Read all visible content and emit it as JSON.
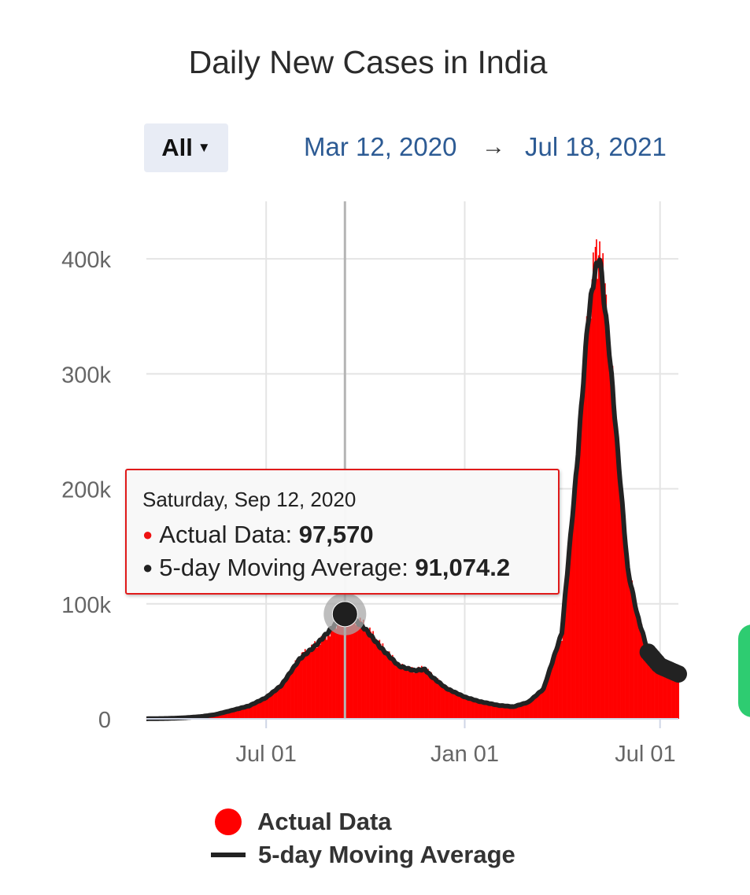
{
  "title": "Daily New Cases in India",
  "controls": {
    "range_select": "All",
    "date_start": "Mar 12, 2020",
    "date_arrow": "→",
    "date_end": "Jul 18, 2021"
  },
  "tooltip": {
    "date": "Saturday, Sep 12, 2020",
    "rows": [
      {
        "label": "Actual Data: ",
        "value": "97,570"
      },
      {
        "label": "5-day Moving Average: ",
        "value": "91,074.2"
      }
    ]
  },
  "legend": [
    {
      "name": "Actual Data",
      "color": "#ff0000"
    },
    {
      "name": "5-day Moving Average",
      "color": "#222222"
    }
  ],
  "chart_data": {
    "type": "bar",
    "x_range": [
      "2020-03-12",
      "2021-07-18"
    ],
    "ylim": [
      0,
      450000
    ],
    "y_ticks": [
      0,
      100000,
      200000,
      300000,
      400000
    ],
    "y_tick_labels": [
      "0",
      "100k",
      "200k",
      "300k",
      "400k"
    ],
    "x_ticks": [
      "2020-07-01",
      "2021-01-01",
      "2021-07-01"
    ],
    "x_tick_labels": [
      "Jul 01",
      "Jan 01",
      "Jul 01"
    ],
    "highlight": {
      "date": "2020-09-12",
      "actual": 97570,
      "moving_average": 91074.2
    },
    "series": [
      {
        "name": "Actual Data",
        "color": "#ff0000",
        "points": [
          [
            "2020-03-12",
            100
          ],
          [
            "2020-04-01",
            400
          ],
          [
            "2020-04-15",
            900
          ],
          [
            "2020-05-01",
            2000
          ],
          [
            "2020-05-15",
            3800
          ],
          [
            "2020-06-01",
            8000
          ],
          [
            "2020-06-15",
            11500
          ],
          [
            "2020-07-01",
            19000
          ],
          [
            "2020-07-15",
            30000
          ],
          [
            "2020-08-01",
            54000
          ],
          [
            "2020-08-15",
            64000
          ],
          [
            "2020-09-01",
            78000
          ],
          [
            "2020-09-12",
            97570
          ],
          [
            "2020-09-20",
            88000
          ],
          [
            "2020-10-01",
            80000
          ],
          [
            "2020-10-15",
            64000
          ],
          [
            "2020-11-01",
            46000
          ],
          [
            "2020-11-15",
            42000
          ],
          [
            "2020-11-25",
            44000
          ],
          [
            "2020-12-01",
            38000
          ],
          [
            "2020-12-15",
            27000
          ],
          [
            "2021-01-01",
            19500
          ],
          [
            "2021-01-15",
            15500
          ],
          [
            "2021-02-01",
            12000
          ],
          [
            "2021-02-15",
            10000
          ],
          [
            "2021-03-01",
            14000
          ],
          [
            "2021-03-15",
            25000
          ],
          [
            "2021-04-01",
            72000
          ],
          [
            "2021-04-15",
            217000
          ],
          [
            "2021-04-25",
            349000
          ],
          [
            "2021-05-01",
            392000
          ],
          [
            "2021-05-06",
            414000
          ],
          [
            "2021-05-15",
            326000
          ],
          [
            "2021-06-01",
            133000
          ],
          [
            "2021-06-10",
            92000
          ],
          [
            "2021-06-20",
            58000
          ],
          [
            "2021-07-01",
            48000
          ],
          [
            "2021-07-18",
            38000
          ]
        ]
      },
      {
        "name": "5-day Moving Average",
        "color": "#222222",
        "points": [
          [
            "2020-03-12",
            80
          ],
          [
            "2020-04-01",
            350
          ],
          [
            "2020-04-15",
            850
          ],
          [
            "2020-05-01",
            1900
          ],
          [
            "2020-05-15",
            3700
          ],
          [
            "2020-06-01",
            7800
          ],
          [
            "2020-06-15",
            11200
          ],
          [
            "2020-07-01",
            18500
          ],
          [
            "2020-07-15",
            29000
          ],
          [
            "2020-08-01",
            52000
          ],
          [
            "2020-08-15",
            63000
          ],
          [
            "2020-09-01",
            80000
          ],
          [
            "2020-09-12",
            91074
          ],
          [
            "2020-09-20",
            87000
          ],
          [
            "2020-10-01",
            78000
          ],
          [
            "2020-10-15",
            62000
          ],
          [
            "2020-11-01",
            46000
          ],
          [
            "2020-11-15",
            42000
          ],
          [
            "2020-11-25",
            43000
          ],
          [
            "2020-12-01",
            37000
          ],
          [
            "2020-12-15",
            26500
          ],
          [
            "2021-01-01",
            19000
          ],
          [
            "2021-01-15",
            15000
          ],
          [
            "2021-02-01",
            11800
          ],
          [
            "2021-02-15",
            10500
          ],
          [
            "2021-03-01",
            14500
          ],
          [
            "2021-03-15",
            26000
          ],
          [
            "2021-04-01",
            75000
          ],
          [
            "2021-04-15",
            220000
          ],
          [
            "2021-04-25",
            345000
          ],
          [
            "2021-05-01",
            385000
          ],
          [
            "2021-05-06",
            402000
          ],
          [
            "2021-05-15",
            320000
          ],
          [
            "2021-06-01",
            130000
          ],
          [
            "2021-06-10",
            90000
          ],
          [
            "2021-06-20",
            58000
          ],
          [
            "2021-07-01",
            46000
          ],
          [
            "2021-07-18",
            39000
          ]
        ]
      }
    ]
  }
}
